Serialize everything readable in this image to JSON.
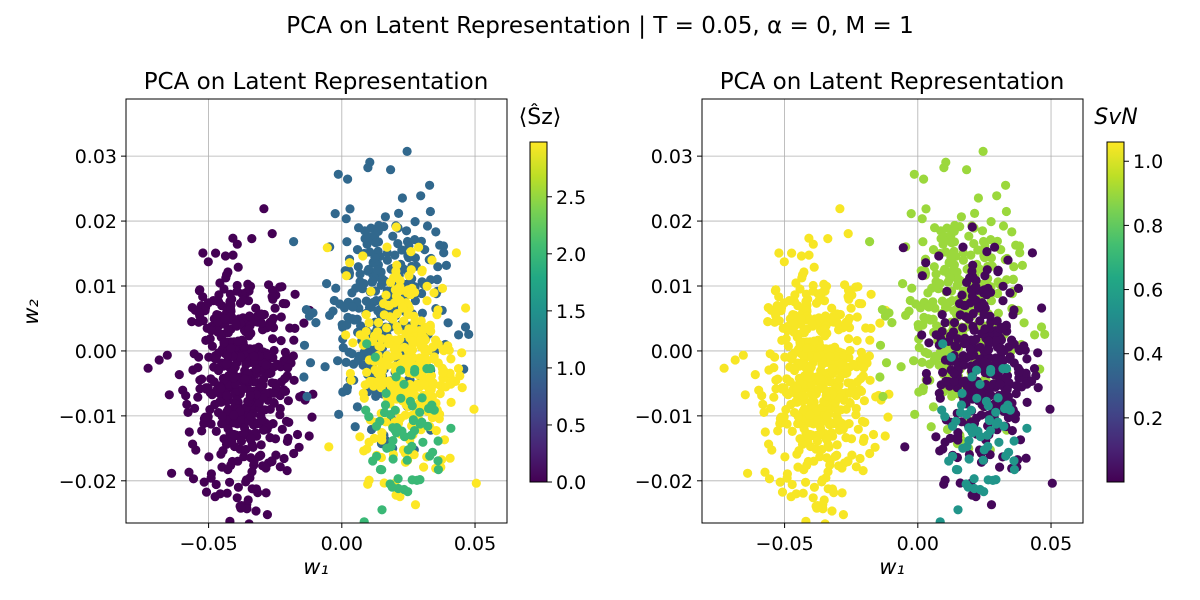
{
  "figure": {
    "suptitle": "PCA on Latent Representation | T = 0.05, α = 0, M = 1"
  },
  "chart_data": [
    {
      "type": "scatter",
      "title": "PCA on Latent Representation",
      "xlabel": "w₁",
      "ylabel": "w₂",
      "xlim": [
        -0.081,
        0.062
      ],
      "ylim": [
        -0.0265,
        0.0388
      ],
      "xticks": [
        -0.05,
        0.0,
        0.05
      ],
      "xtick_labels": [
        "−0.05",
        "0.00",
        "0.05"
      ],
      "yticks": [
        -0.02,
        -0.01,
        0.0,
        0.01,
        0.02,
        0.03
      ],
      "ytick_labels": [
        "−0.02",
        "−0.01",
        "0.00",
        "0.01",
        "0.02",
        "0.03"
      ],
      "grid": true,
      "colormap": "viridis",
      "colorbar": {
        "label": "⟨Ŝz⟩",
        "range": [
          0.0,
          2.98
        ],
        "ticks": [
          0.0,
          0.5,
          1.0,
          1.5,
          2.0,
          2.5
        ],
        "tick_labels": [
          "0.0",
          "0.5",
          "1.0",
          "1.5",
          "2.0",
          "2.5"
        ]
      },
      "clusters": [
        {
          "color_value": 0.0,
          "points": 520,
          "center": [
            -0.037,
            -0.004
          ],
          "spread": [
            0.0095,
            0.0085
          ],
          "description": "left cluster"
        },
        {
          "color_value": 1.0,
          "points": 330,
          "center": [
            0.015,
            0.006
          ],
          "spread": [
            0.011,
            0.0085
          ]
        },
        {
          "color_value": 2.98,
          "points": 330,
          "center": [
            0.025,
            -0.002
          ],
          "spread": [
            0.009,
            0.0085
          ]
        },
        {
          "color_value": 2.0,
          "points": 70,
          "center": [
            0.022,
            -0.012
          ],
          "spread": [
            0.009,
            0.006
          ]
        }
      ]
    },
    {
      "type": "scatter",
      "title": "PCA on Latent Representation",
      "xlabel": "w₁",
      "ylabel": "",
      "xlim": [
        -0.081,
        0.062
      ],
      "ylim": [
        -0.0265,
        0.0388
      ],
      "xticks": [
        -0.05,
        0.0,
        0.05
      ],
      "xtick_labels": [
        "−0.05",
        "0.00",
        "0.05"
      ],
      "yticks": [
        -0.02,
        -0.01,
        0.0,
        0.01,
        0.02,
        0.03
      ],
      "ytick_labels": [
        "−0.02",
        "−0.01",
        "0.00",
        "0.01",
        "0.02",
        "0.03"
      ],
      "grid": true,
      "colormap": "viridis",
      "colorbar": {
        "label": "SvN",
        "range": [
          0.0,
          1.06
        ],
        "ticks": [
          0.2,
          0.4,
          0.6,
          0.8,
          1.0
        ],
        "tick_labels": [
          "0.2",
          "0.4",
          "0.6",
          "0.8",
          "1.0"
        ]
      },
      "clusters": [
        {
          "color_value": 1.05,
          "points": 520,
          "center": [
            -0.037,
            -0.004
          ],
          "spread": [
            0.0095,
            0.0085
          ]
        },
        {
          "color_value": 0.9,
          "points": 330,
          "center": [
            0.015,
            0.006
          ],
          "spread": [
            0.011,
            0.0085
          ]
        },
        {
          "color_value": 0.02,
          "points": 330,
          "center": [
            0.025,
            -0.002
          ],
          "spread": [
            0.009,
            0.0085
          ]
        },
        {
          "color_value": 0.55,
          "points": 70,
          "center": [
            0.022,
            -0.012
          ],
          "spread": [
            0.009,
            0.006
          ]
        }
      ]
    }
  ]
}
